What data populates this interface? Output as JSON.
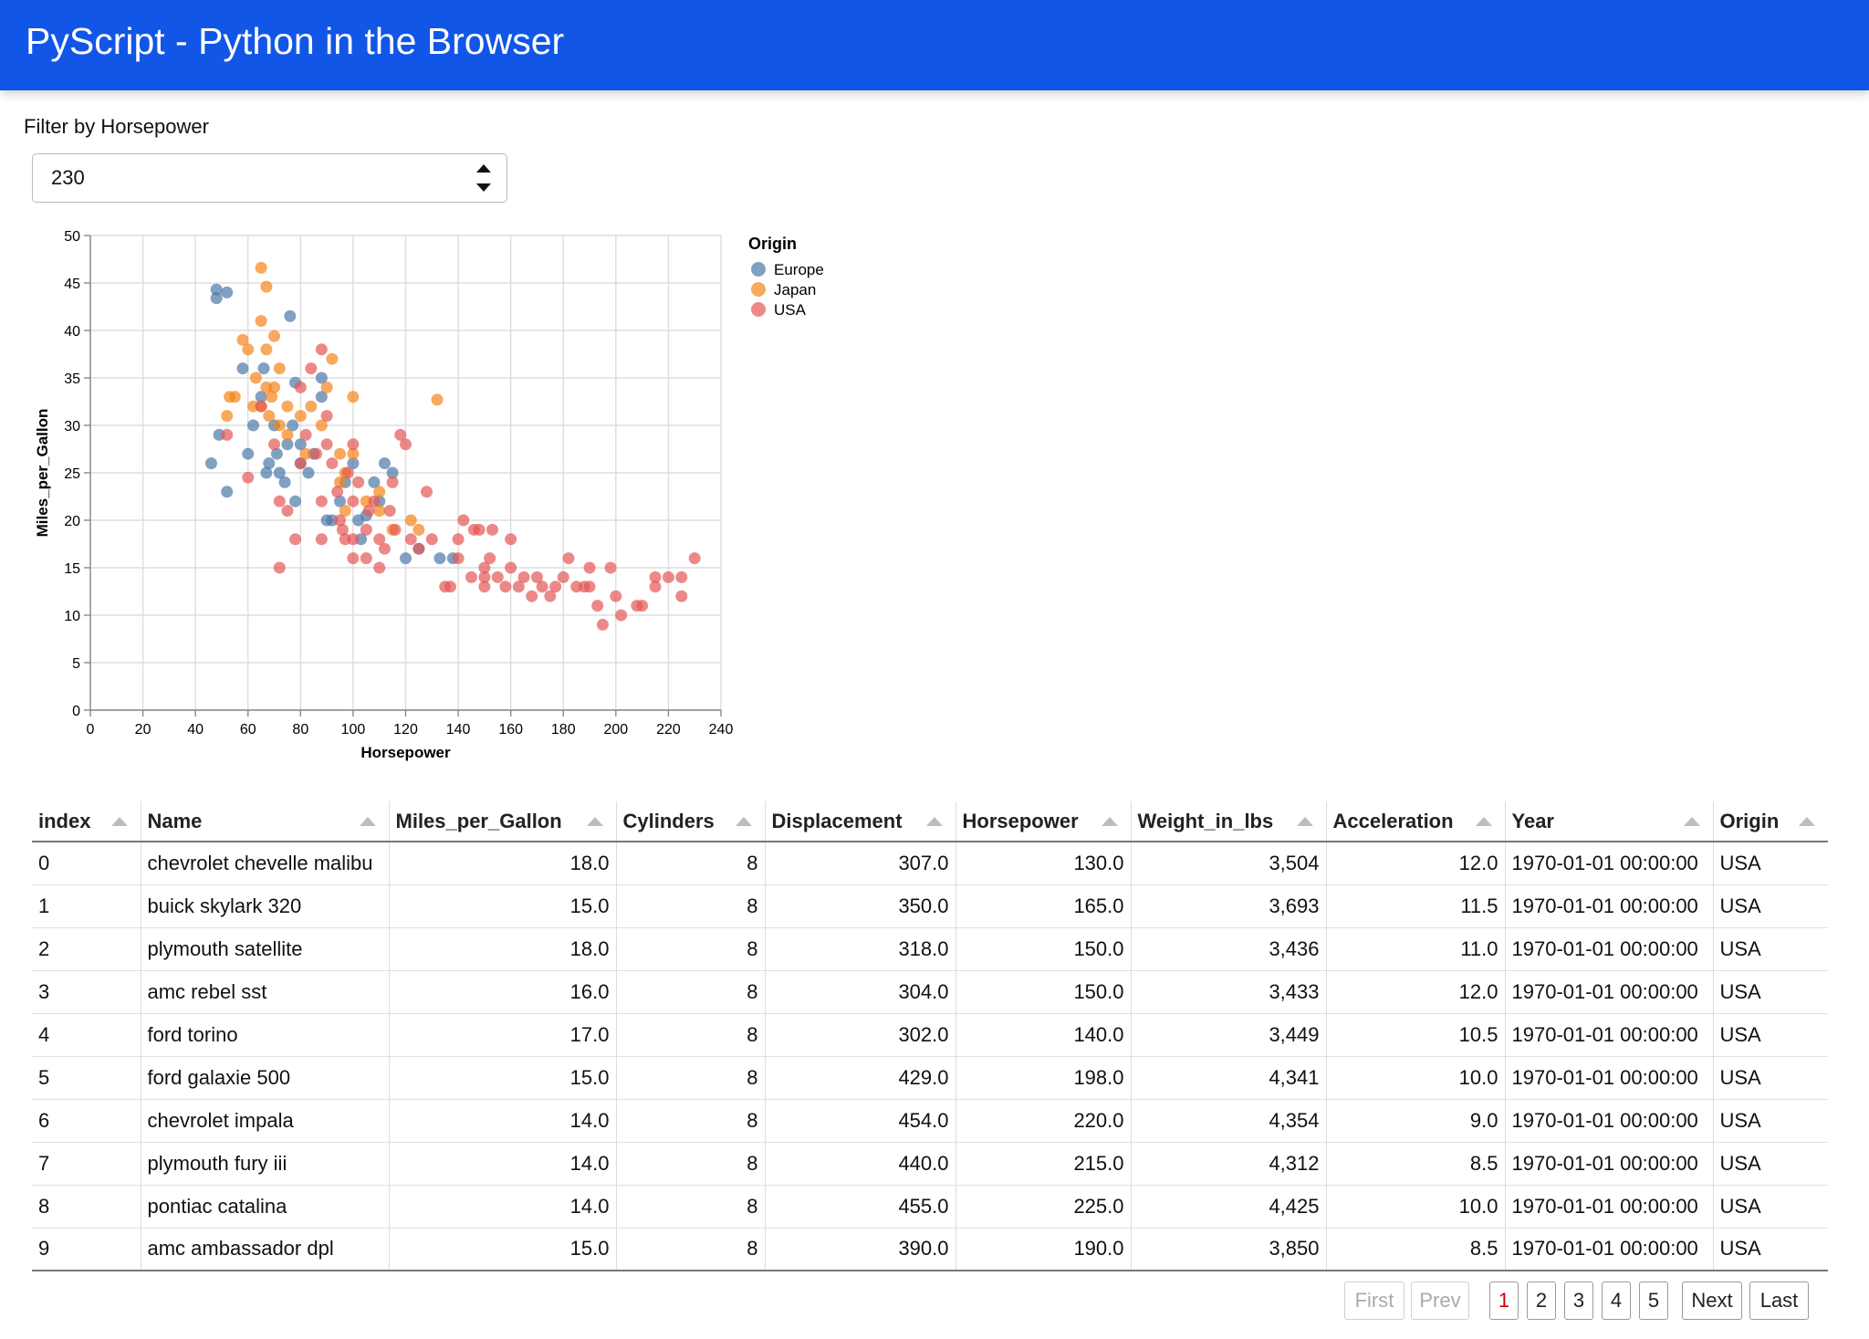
{
  "header": {
    "title": "PyScript - Python in the Browser"
  },
  "filter": {
    "label": "Filter by Horsepower",
    "value": "230"
  },
  "colors": {
    "header_bg": "#1156e6",
    "europe": "#4c78a8",
    "japan": "#f58518",
    "usa": "#e45756"
  },
  "chart_data": {
    "type": "scatter",
    "xlabel": "Horsepower",
    "ylabel": "Miles_per_Gallon",
    "xlim": [
      0,
      240
    ],
    "ylim": [
      0,
      50
    ],
    "xticks": [
      0,
      20,
      40,
      60,
      80,
      100,
      120,
      140,
      160,
      180,
      200,
      220,
      240
    ],
    "yticks": [
      0,
      5,
      10,
      15,
      20,
      25,
      30,
      35,
      40,
      45,
      50
    ],
    "grid": true,
    "legend": {
      "title": "Origin",
      "placement": "right"
    },
    "series": [
      {
        "name": "Europe",
        "color": "#4c78a8",
        "points": [
          [
            46,
            26
          ],
          [
            48,
            43.4
          ],
          [
            48,
            44.3
          ],
          [
            49,
            29
          ],
          [
            52,
            44
          ],
          [
            52,
            23
          ],
          [
            58,
            36
          ],
          [
            60,
            27
          ],
          [
            62,
            30
          ],
          [
            65,
            33
          ],
          [
            66,
            36
          ],
          [
            67,
            25
          ],
          [
            68,
            26
          ],
          [
            70,
            30
          ],
          [
            71,
            27
          ],
          [
            72,
            25
          ],
          [
            74,
            24
          ],
          [
            75,
            28
          ],
          [
            76,
            41.5
          ],
          [
            77,
            30
          ],
          [
            78,
            22
          ],
          [
            78,
            34.5
          ],
          [
            80,
            28
          ],
          [
            80,
            26
          ],
          [
            83,
            25
          ],
          [
            85,
            27
          ],
          [
            88,
            33
          ],
          [
            88,
            35
          ],
          [
            90,
            20
          ],
          [
            92,
            20
          ],
          [
            95,
            22
          ],
          [
            97,
            24
          ],
          [
            100,
            26
          ],
          [
            102,
            20
          ],
          [
            103,
            18
          ],
          [
            105,
            20.5
          ],
          [
            108,
            24
          ],
          [
            110,
            22
          ],
          [
            112,
            26
          ],
          [
            115,
            25
          ],
          [
            120,
            16
          ],
          [
            125,
            17
          ],
          [
            133,
            16
          ],
          [
            138,
            16
          ]
        ]
      },
      {
        "name": "Japan",
        "color": "#f58518",
        "points": [
          [
            52,
            31
          ],
          [
            53,
            33
          ],
          [
            55,
            33
          ],
          [
            58,
            39
          ],
          [
            60,
            38
          ],
          [
            62,
            32
          ],
          [
            63,
            35
          ],
          [
            65,
            32
          ],
          [
            65,
            41
          ],
          [
            65,
            46.6
          ],
          [
            67,
            44.6
          ],
          [
            67,
            38
          ],
          [
            67,
            34
          ],
          [
            68,
            31
          ],
          [
            69,
            33
          ],
          [
            70,
            39.4
          ],
          [
            70,
            34
          ],
          [
            72,
            36
          ],
          [
            72,
            30
          ],
          [
            75,
            32
          ],
          [
            75,
            29
          ],
          [
            80,
            31
          ],
          [
            82,
            27
          ],
          [
            84,
            32
          ],
          [
            88,
            30
          ],
          [
            90,
            34
          ],
          [
            92,
            37
          ],
          [
            95,
            27
          ],
          [
            95,
            24
          ],
          [
            97,
            25
          ],
          [
            97,
            21
          ],
          [
            100,
            27
          ],
          [
            100,
            33
          ],
          [
            105,
            22
          ],
          [
            110,
            21
          ],
          [
            110,
            23
          ],
          [
            115,
            19
          ],
          [
            122,
            20
          ],
          [
            125,
            19
          ],
          [
            132,
            32.7
          ]
        ]
      },
      {
        "name": "USA",
        "color": "#e45756",
        "points": [
          [
            52,
            29
          ],
          [
            60,
            24.5
          ],
          [
            65,
            32
          ],
          [
            70,
            28
          ],
          [
            72,
            22
          ],
          [
            72,
            15
          ],
          [
            75,
            21
          ],
          [
            78,
            18
          ],
          [
            80,
            26
          ],
          [
            80,
            34
          ],
          [
            82,
            29
          ],
          [
            84,
            36
          ],
          [
            86,
            27
          ],
          [
            88,
            38
          ],
          [
            88,
            22
          ],
          [
            88,
            18
          ],
          [
            90,
            31
          ],
          [
            90,
            28
          ],
          [
            92,
            26
          ],
          [
            94,
            23
          ],
          [
            95,
            20
          ],
          [
            96,
            19
          ],
          [
            97,
            18
          ],
          [
            98,
            25
          ],
          [
            100,
            16
          ],
          [
            100,
            18
          ],
          [
            100,
            22
          ],
          [
            100,
            28
          ],
          [
            102,
            24
          ],
          [
            105,
            16
          ],
          [
            105,
            19
          ],
          [
            106,
            21
          ],
          [
            108,
            22
          ],
          [
            110,
            15
          ],
          [
            110,
            18
          ],
          [
            112,
            17
          ],
          [
            114,
            21
          ],
          [
            115,
            24
          ],
          [
            116,
            19
          ],
          [
            118,
            29
          ],
          [
            120,
            28
          ],
          [
            122,
            18
          ],
          [
            125,
            17
          ],
          [
            128,
            23
          ],
          [
            130,
            18
          ],
          [
            135,
            13
          ],
          [
            137,
            13
          ],
          [
            140,
            16
          ],
          [
            140,
            18
          ],
          [
            142,
            20
          ],
          [
            145,
            14
          ],
          [
            146,
            19
          ],
          [
            148,
            19
          ],
          [
            150,
            13
          ],
          [
            150,
            14
          ],
          [
            150,
            15
          ],
          [
            152,
            16
          ],
          [
            153,
            19
          ],
          [
            155,
            14
          ],
          [
            158,
            13
          ],
          [
            160,
            18
          ],
          [
            160,
            15
          ],
          [
            163,
            13
          ],
          [
            165,
            14
          ],
          [
            168,
            12
          ],
          [
            170,
            14
          ],
          [
            172,
            13
          ],
          [
            175,
            12
          ],
          [
            177,
            13
          ],
          [
            180,
            14
          ],
          [
            182,
            16
          ],
          [
            185,
            13
          ],
          [
            188,
            13
          ],
          [
            190,
            15
          ],
          [
            190,
            13
          ],
          [
            193,
            11
          ],
          [
            195,
            9
          ],
          [
            198,
            15
          ],
          [
            200,
            12
          ],
          [
            202,
            10
          ],
          [
            210,
            11
          ],
          [
            215,
            14
          ],
          [
            215,
            13
          ],
          [
            220,
            14
          ],
          [
            225,
            14
          ],
          [
            225,
            12
          ],
          [
            230,
            16
          ],
          [
            208,
            11
          ]
        ]
      }
    ]
  },
  "table": {
    "columns": [
      "index",
      "Name",
      "Miles_per_Gallon",
      "Cylinders",
      "Displacement",
      "Horsepower",
      "Weight_in_lbs",
      "Acceleration",
      "Year",
      "Origin"
    ],
    "rows": [
      [
        "0",
        "chevrolet chevelle malibu",
        "18.0",
        "8",
        "307.0",
        "130.0",
        "3,504",
        "12.0",
        "1970-01-01 00:00:00",
        "USA"
      ],
      [
        "1",
        "buick skylark 320",
        "15.0",
        "8",
        "350.0",
        "165.0",
        "3,693",
        "11.5",
        "1970-01-01 00:00:00",
        "USA"
      ],
      [
        "2",
        "plymouth satellite",
        "18.0",
        "8",
        "318.0",
        "150.0",
        "3,436",
        "11.0",
        "1970-01-01 00:00:00",
        "USA"
      ],
      [
        "3",
        "amc rebel sst",
        "16.0",
        "8",
        "304.0",
        "150.0",
        "3,433",
        "12.0",
        "1970-01-01 00:00:00",
        "USA"
      ],
      [
        "4",
        "ford torino",
        "17.0",
        "8",
        "302.0",
        "140.0",
        "3,449",
        "10.5",
        "1970-01-01 00:00:00",
        "USA"
      ],
      [
        "5",
        "ford galaxie 500",
        "15.0",
        "8",
        "429.0",
        "198.0",
        "4,341",
        "10.0",
        "1970-01-01 00:00:00",
        "USA"
      ],
      [
        "6",
        "chevrolet impala",
        "14.0",
        "8",
        "454.0",
        "220.0",
        "4,354",
        "9.0",
        "1970-01-01 00:00:00",
        "USA"
      ],
      [
        "7",
        "plymouth fury iii",
        "14.0",
        "8",
        "440.0",
        "215.0",
        "4,312",
        "8.5",
        "1970-01-01 00:00:00",
        "USA"
      ],
      [
        "8",
        "pontiac catalina",
        "14.0",
        "8",
        "455.0",
        "225.0",
        "4,425",
        "10.0",
        "1970-01-01 00:00:00",
        "USA"
      ],
      [
        "9",
        "amc ambassador dpl",
        "15.0",
        "8",
        "390.0",
        "190.0",
        "3,850",
        "8.5",
        "1970-01-01 00:00:00",
        "USA"
      ]
    ]
  },
  "pagination": {
    "first": "First",
    "prev": "Prev",
    "next": "Next",
    "last": "Last",
    "pages": [
      "1",
      "2",
      "3",
      "4",
      "5"
    ],
    "current": "1"
  }
}
